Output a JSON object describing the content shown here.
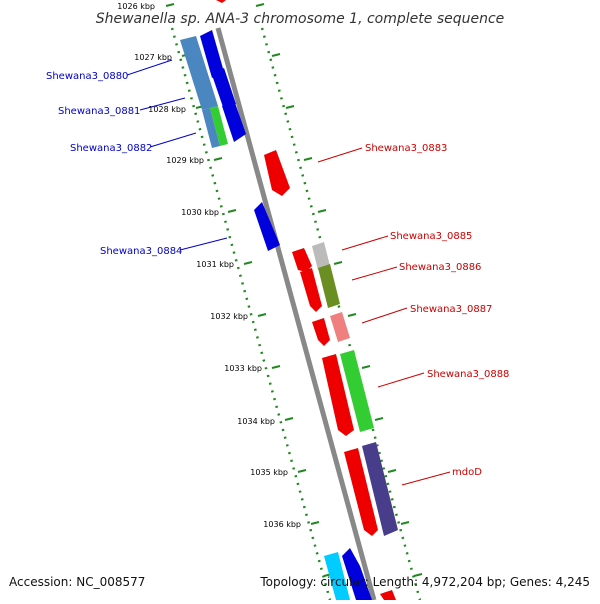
{
  "header": {
    "title": "Shewanella sp. ANA-3 chromosome 1, complete sequence"
  },
  "footer": {
    "accession": "Accession: NC_008577",
    "summary": "Topology: circular; Length: 4,972,204 bp; Genes: 4,245"
  },
  "ruler_labels": [
    "1026 kbp",
    "1027 kbp",
    "1028 kbp",
    "1029 kbp",
    "1030 kbp",
    "1031 kbp",
    "1032 kbp",
    "1033 kbp",
    "1034 kbp",
    "1035 kbp",
    "1036 kbp"
  ],
  "gene_labels": {
    "left": [
      "Shewana3_0880",
      "Shewana3_0881",
      "Shewana3_0882",
      "Shewana3_0884"
    ],
    "right": [
      "Shewana3_0883",
      "Shewana3_0885",
      "Shewana3_0886",
      "Shewana3_0887",
      "Shewana3_0888",
      "mdoD"
    ]
  },
  "colors": {
    "forward": "#0000dd",
    "reverse": "#ee0000",
    "backbone": "#888888",
    "tick": "#228822",
    "label_blue": "#0000cc",
    "label_red": "#cc0000",
    "steel": "#4a86c0",
    "green": "#33cc33",
    "olive": "#6b8e23",
    "gray": "#bbbbbb",
    "pink": "#f08080",
    "purple": "#483d8b",
    "cyan": "#00ccff"
  }
}
